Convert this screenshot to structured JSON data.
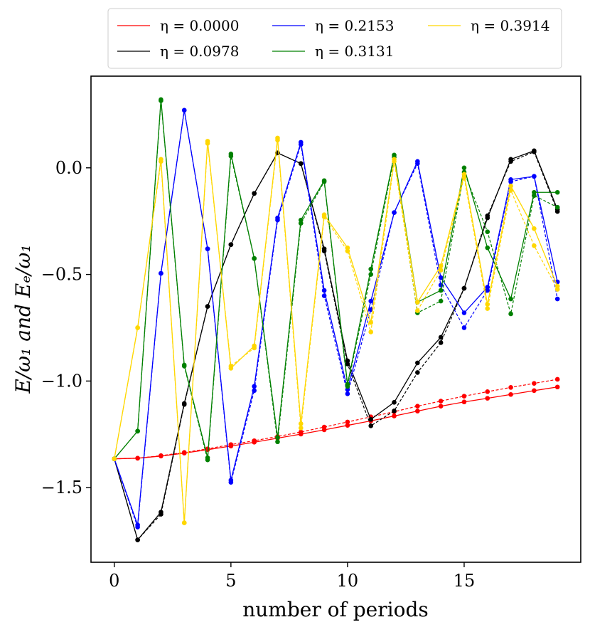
{
  "chart_data": {
    "type": "line",
    "xlabel": "number of periods",
    "ylabel": "E/ω₁ and Eₑ/ω₁",
    "xlim": [
      -1.0,
      20.0
    ],
    "ylim": [
      -1.85,
      0.43
    ],
    "xticks": [
      0,
      5,
      10,
      15
    ],
    "xtick_labels": [
      "0",
      "5",
      "10",
      "15"
    ],
    "yticks": [
      0.0,
      -0.5,
      -1.0,
      -1.5
    ],
    "ytick_labels": [
      "0.0",
      "−0.5",
      "−1.0",
      "−1.5"
    ],
    "grid": false,
    "legend": {
      "placement": "top-center (above plot)",
      "columns": 3
    },
    "x": [
      0,
      1,
      2,
      3,
      4,
      5,
      6,
      7,
      8,
      9,
      10,
      11,
      12,
      13,
      14,
      15,
      16,
      17,
      18,
      19
    ],
    "series": [
      {
        "name": "η = 0.0000",
        "color": "#ff0000",
        "E": [
          -1.365,
          -1.362,
          -1.352,
          -1.338,
          -1.322,
          -1.305,
          -1.287,
          -1.268,
          -1.249,
          -1.229,
          -1.208,
          -1.187,
          -1.164,
          -1.141,
          -1.118,
          -1.098,
          -1.081,
          -1.063,
          -1.045,
          -1.028
        ],
        "Ee": [
          -1.365,
          -1.362,
          -1.35,
          -1.335,
          -1.318,
          -1.298,
          -1.28,
          -1.26,
          -1.239,
          -1.216,
          -1.192,
          -1.168,
          -1.144,
          -1.118,
          -1.094,
          -1.071,
          -1.05,
          -1.03,
          -1.011,
          -0.992
        ]
      },
      {
        "name": "η = 0.0978",
        "color": "#000000",
        "E": [
          -1.365,
          -1.745,
          -1.615,
          -1.105,
          -0.65,
          -0.36,
          -0.12,
          0.07,
          0.02,
          -0.38,
          -0.905,
          -1.18,
          -1.1,
          -0.915,
          -0.795,
          -0.565,
          -0.235,
          0.04,
          0.08,
          -0.195
        ],
        "Ee": [
          -1.365,
          -1.745,
          -1.625,
          -1.11,
          -0.65,
          -0.36,
          -0.12,
          0.07,
          0.02,
          -0.39,
          -0.92,
          -1.21,
          -1.14,
          -0.96,
          -0.82,
          -0.565,
          -0.225,
          0.03,
          0.075,
          -0.205
        ]
      },
      {
        "name": "η = 0.2153",
        "color": "#0000ff",
        "E": [
          -1.365,
          -1.675,
          -0.495,
          0.27,
          -0.38,
          -1.465,
          -1.025,
          -0.235,
          0.12,
          -0.575,
          -1.04,
          -0.625,
          -0.21,
          0.03,
          -0.515,
          -0.68,
          -0.56,
          -0.055,
          -0.04,
          -0.535
        ],
        "Ee": [
          -1.365,
          -1.685,
          -0.495,
          0.27,
          -0.38,
          -1.475,
          -1.045,
          -0.245,
          0.11,
          -0.6,
          -1.06,
          -0.665,
          -0.21,
          0.02,
          -0.55,
          -0.75,
          -0.575,
          -0.065,
          -0.04,
          -0.615
        ]
      },
      {
        "name": "η = 0.3131",
        "color": "#008000",
        "E": [
          -1.365,
          -1.235,
          0.32,
          -0.925,
          -1.36,
          0.065,
          -0.425,
          -1.265,
          -0.245,
          -0.06,
          -1.015,
          -0.475,
          0.06,
          -0.63,
          -0.575,
          0.0,
          -0.375,
          -0.615,
          -0.115,
          -0.115
        ],
        "Ee": [
          -1.365,
          -1.235,
          0.315,
          -0.93,
          -1.37,
          0.055,
          -0.425,
          -1.285,
          -0.26,
          -0.065,
          -1.025,
          -0.5,
          0.05,
          -0.68,
          -0.625,
          -0.02,
          -0.3,
          -0.685,
          -0.13,
          -0.185
        ]
      },
      {
        "name": "η = 0.3914",
        "color": "#ffd700",
        "E": [
          -1.365,
          -0.75,
          0.04,
          -1.665,
          0.125,
          -0.94,
          -0.835,
          0.14,
          -1.2,
          -0.22,
          -0.375,
          -0.725,
          0.04,
          -0.63,
          -0.46,
          -0.03,
          -0.64,
          -0.085,
          -0.285,
          -0.555
        ],
        "Ee": [
          -1.365,
          -0.75,
          0.03,
          -1.665,
          0.115,
          -0.93,
          -0.845,
          0.13,
          -1.22,
          -0.23,
          -0.39,
          -0.77,
          0.03,
          -0.67,
          -0.48,
          -0.045,
          -0.66,
          -0.105,
          -0.365,
          -0.57
        ]
      }
    ]
  }
}
